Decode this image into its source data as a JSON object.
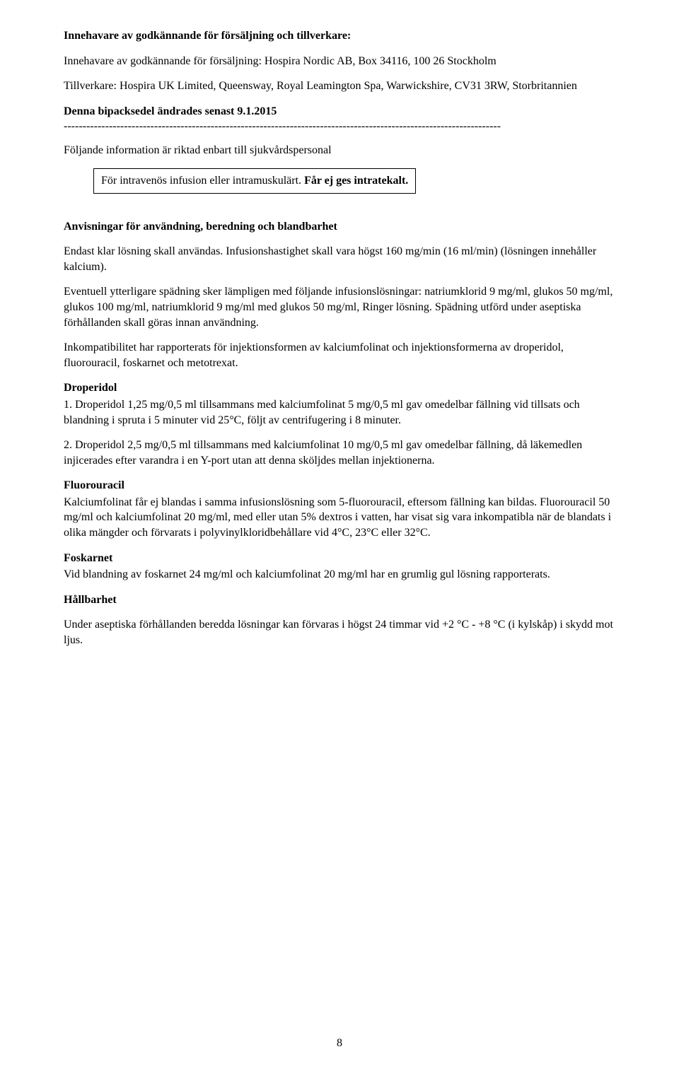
{
  "heading1": "Innehavare av godkännande för försäljning och tillverkare:",
  "line_holder": "Innehavare av godkännande för försäljning: Hospira Nordic AB, Box 34116, 100 26 Stockholm",
  "line_manufacturer": "Tillverkare: Hospira UK Limited, Queensway, Royal Leamington Spa, Warwickshire, CV31 3RW, Storbritannien",
  "revised_label": "Denna bipacksedel ändrades senast 9.1.2015",
  "dashes": "--------------------------------------------------------------------------------------------------------------------",
  "following_info": "Följande information är riktad enbart till sjukvårdspersonal",
  "box_text_a": "För intravenös infusion eller intramuskulärt. ",
  "box_text_b": "Får ej ges intratekalt.",
  "instructions_heading": "Anvisningar för användning, beredning och blandbarhet",
  "para_endast": "Endast klar lösning skall användas. Infusionshastighet skall vara högst 160 mg/min (16 ml/min) (lösningen innehåller kalcium).",
  "para_eventuell": "Eventuell ytterligare spädning sker lämpligen med följande infusionslösningar: natriumklorid 9 mg/ml, glukos 50 mg/ml, glukos 100 mg/ml, natriumklorid 9 mg/ml med glukos 50 mg/ml, Ringer lösning. Spädning utförd under aseptiska förhållanden skall göras innan användning.",
  "para_inkompat": "Inkompatibilitet har rapporterats för injektionsformen av kalciumfolinat och injektionsformerna av droperidol, fluorouracil, foskarnet och metotrexat.",
  "droperidol_h": "Droperidol",
  "droperidol_1": "1. Droperidol 1,25 mg/0,5 ml tillsammans med kalciumfolinat 5 mg/0,5 ml gav omedelbar fällning vid tillsats och blandning i spruta i 5 minuter vid 25°C, följt av centrifugering i 8 minuter.",
  "droperidol_2": "2. Droperidol 2,5 mg/0,5 ml tillsammans med kalciumfolinat 10 mg/0,5 ml gav omedelbar fällning, då läkemedlen injicerades efter varandra i en Y-port utan att denna sköljdes mellan injektionerna.",
  "fluorouracil_h": "Fluorouracil",
  "fluorouracil_p": "Kalciumfolinat får ej blandas i samma infusionslösning som 5-fluorouracil, eftersom fällning kan bildas. Fluorouracil 50 mg/ml och kalciumfolinat 20 mg/ml, med eller utan 5% dextros i vatten, har visat sig vara inkompatibla när de blandats i olika mängder och förvarats i polyvinylkloridbehållare vid 4°C, 23°C eller 32°C.",
  "foskarnet_h": "Foskarnet",
  "foskarnet_p": "Vid blandning av foskarnet 24 mg/ml och kalciumfolinat 20 mg/ml har en grumlig gul lösning rapporterats.",
  "hallbarhet_h": "Hållbarhet",
  "hallbarhet_p": "Under aseptiska förhållanden beredda lösningar kan förvaras i högst 24 timmar vid +2 °C - +8 °C (i kylskåp) i skydd mot ljus.",
  "page_number": "8"
}
